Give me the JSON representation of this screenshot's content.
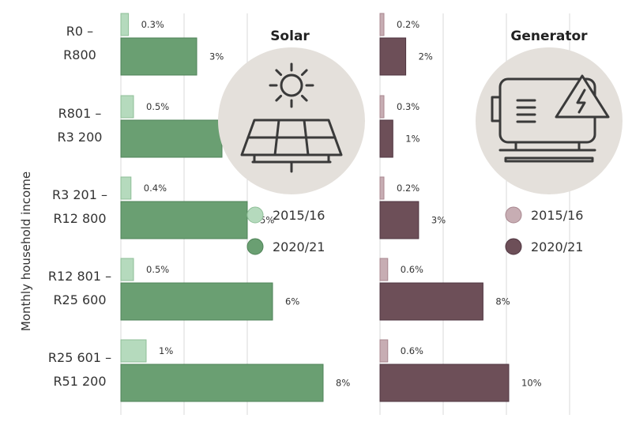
{
  "ylabel": "Monthly household income",
  "colors": {
    "solar_2015": "#b5dabd",
    "solar_2020": "#6a9f72",
    "gen_2015": "#c7adb3",
    "gen_2020": "#6d4f58",
    "icon_circle": "#e4e0db",
    "icon_stroke": "#3a3a3a",
    "grid": "#d8d8d8",
    "text": "#333333"
  },
  "chart_data": [
    {
      "type": "bar",
      "orientation": "horizontal",
      "title": "Solar",
      "icon": "solar-panel-sun-icon",
      "categories": [
        [
          "R0 –",
          "R800"
        ],
        [
          "R801 –",
          "R3 200"
        ],
        [
          "R3 201 –",
          "R12 800"
        ],
        [
          "R12 801 –",
          "R25 600"
        ],
        [
          "R25 601 –",
          "R51 200"
        ]
      ],
      "series": [
        {
          "name": "2015/16",
          "values": [
            0.3,
            0.5,
            0.4,
            0.5,
            1
          ],
          "labels": [
            "0.3%",
            "0.5%",
            "0.4%",
            "0.5%",
            "1%"
          ]
        },
        {
          "name": "2020/21",
          "values": [
            3,
            4,
            5,
            6,
            8
          ],
          "labels": [
            "3%",
            "4%",
            "5%",
            "6%",
            "8%"
          ]
        }
      ],
      "xlim": [
        0,
        10
      ],
      "grid": true
    },
    {
      "type": "bar",
      "orientation": "horizontal",
      "title": "Generator",
      "icon": "generator-icon",
      "categories": [
        [
          "R0 –",
          "R800"
        ],
        [
          "R801 –",
          "R3 200"
        ],
        [
          "R3 201 –",
          "R12 800"
        ],
        [
          "R12 801 –",
          "R25 600"
        ],
        [
          "R25 601 –",
          "R51 200"
        ]
      ],
      "series": [
        {
          "name": "2015/16",
          "values": [
            0.2,
            0.3,
            0.2,
            0.6,
            0.6
          ],
          "labels": [
            "0.2%",
            "0.3%",
            "0.2%",
            "0.6%",
            "0.6%"
          ]
        },
        {
          "name": "2020/21",
          "values": [
            2,
            1,
            3,
            8,
            10
          ],
          "labels": [
            "2%",
            "1%",
            "3%",
            "8%",
            "10%"
          ]
        }
      ],
      "xlim": [
        0,
        10
      ],
      "grid": true
    }
  ]
}
